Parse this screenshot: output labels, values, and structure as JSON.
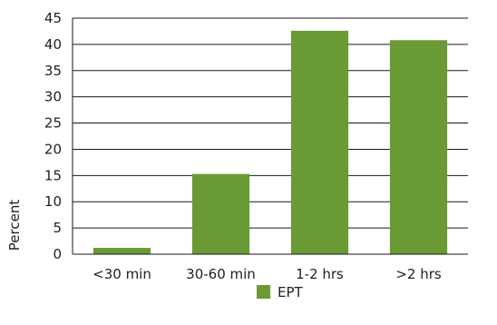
{
  "chart_data": {
    "type": "bar",
    "categories": [
      "<30 min",
      "30-60 min",
      "1-2 hrs",
      ">2 hrs"
    ],
    "series": [
      {
        "name": "EPT",
        "color": "#6a9a34",
        "values": [
          1.2,
          15.3,
          42.6,
          40.8
        ]
      }
    ],
    "ylabel": "Percent",
    "xlabel": "",
    "ylim": [
      0,
      45
    ],
    "yticks": [
      0,
      5,
      10,
      15,
      20,
      25,
      30,
      35,
      40,
      45
    ],
    "grid": true,
    "legend_position": "bottom"
  }
}
